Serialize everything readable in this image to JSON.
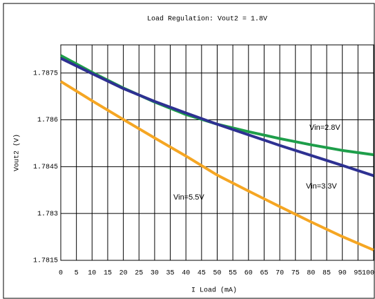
{
  "chart_data": {
    "type": "line",
    "title": "Load Regulation: Vout2 = 1.8V",
    "x_label": "I Load (mA)",
    "y_label": "Vout2 (V)",
    "x": [
      0,
      10,
      20,
      30,
      40,
      50,
      60,
      70,
      80,
      90,
      100
    ],
    "series": [
      {
        "name": "Vin=2.8V",
        "color": "#1e9e4a",
        "values": [
          1.78806,
          1.78752,
          1.78702,
          1.78657,
          1.78617,
          1.78586,
          1.78562,
          1.7854,
          1.7852,
          1.78502,
          1.78488
        ]
      },
      {
        "name": "Vin=3.3V",
        "color": "#2e3192",
        "values": [
          1.78797,
          1.78748,
          1.787,
          1.78659,
          1.78622,
          1.78586,
          1.78552,
          1.78518,
          1.78486,
          1.78454,
          1.78421
        ]
      },
      {
        "name": "Vin=5.5V",
        "color": "#f5a623",
        "values": [
          1.78723,
          1.78661,
          1.78601,
          1.78542,
          1.78484,
          1.78423,
          1.78372,
          1.78322,
          1.78273,
          1.78226,
          1.78183
        ]
      }
    ],
    "xlim": [
      0,
      100
    ],
    "xticks": [
      0,
      5,
      10,
      15,
      20,
      25,
      30,
      35,
      40,
      45,
      50,
      55,
      60,
      65,
      70,
      75,
      80,
      85,
      90,
      95,
      100
    ],
    "ylim": [
      1.7815,
      1.7884
    ],
    "yticks": [
      1.7815,
      1.783,
      1.7845,
      1.786,
      1.7875
    ],
    "grid": true
  }
}
